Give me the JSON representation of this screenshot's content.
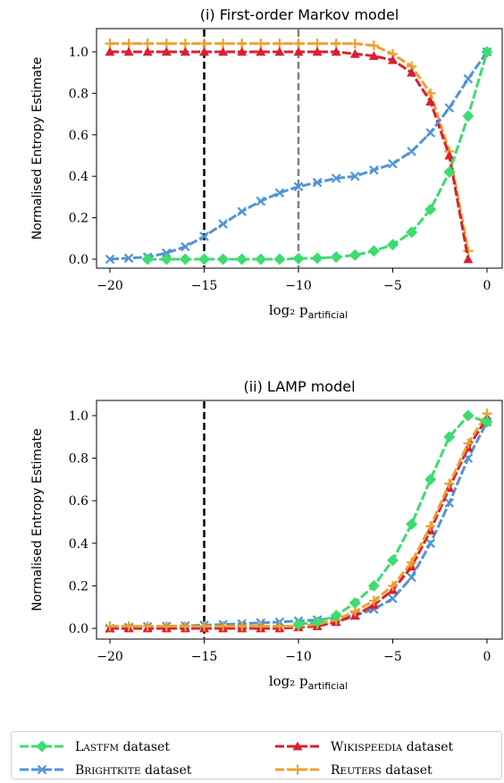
{
  "figure": {
    "legend": {
      "entries": [
        {
          "series": "lastfm",
          "name_caps": "LastFM",
          "suffix": " dataset"
        },
        {
          "series": "wikispeedia",
          "name_caps": "Wikispeedia",
          "suffix": " dataset"
        },
        {
          "series": "brightkite",
          "name_caps": "BrightKite",
          "suffix": " dataset"
        },
        {
          "series": "reuters",
          "name_caps": "Reuters",
          "suffix": " dataset"
        }
      ]
    },
    "colors": {
      "lastfm": "#3ddc6f",
      "brightkite": "#4f94d6",
      "wikispeedia": "#d9202f",
      "reuters": "#ef9f2e",
      "guide_black": "#000000",
      "guide_gray": "#808080"
    },
    "markers": {
      "lastfm": "diamond",
      "brightkite": "x",
      "wikispeedia": "triangle-up",
      "reuters": "plus"
    }
  },
  "chart_data": [
    {
      "type": "line",
      "title": "(i) First-order Markov model",
      "xlabel": "log₂ p",
      "xlabel_subscript": "artificial",
      "ylabel": "Normalised Entropy Estimate",
      "xlim": [
        -20,
        0
      ],
      "ylim": [
        0,
        1
      ],
      "xticks": [
        -20,
        -15,
        -10,
        -5,
        0
      ],
      "xtick_labels": [
        "−20",
        "−15",
        "−10",
        "−5",
        "0"
      ],
      "yticks": [
        0,
        0.2,
        0.4,
        0.6,
        0.8,
        1.0
      ],
      "ytick_labels": [
        "0.0",
        "0.2",
        "0.4",
        "0.6",
        "0.8",
        "1.0"
      ],
      "grid": false,
      "vlines": [
        {
          "x": -15,
          "color": "black",
          "style": "dashed"
        },
        {
          "x": -10,
          "color": "gray",
          "style": "dashed"
        }
      ],
      "x": [
        -20,
        -19,
        -18,
        -17,
        -16,
        -15,
        -14,
        -13,
        -12,
        -11,
        -10,
        -9,
        -8,
        -7,
        -6,
        -5,
        -4,
        -3,
        -2,
        -1,
        0
      ],
      "series": [
        {
          "key": "reuters",
          "values": [
            1.04,
            1.04,
            1.04,
            1.04,
            1.04,
            1.04,
            1.04,
            1.04,
            1.04,
            1.04,
            1.04,
            1.04,
            1.04,
            1.04,
            1.03,
            0.99,
            0.93,
            0.8,
            0.52,
            0.04,
            null
          ]
        },
        {
          "key": "wikispeedia",
          "values": [
            1.0,
            1.0,
            1.0,
            1.0,
            1.0,
            1.0,
            1.0,
            1.0,
            1.0,
            1.0,
            1.0,
            1.0,
            1.0,
            0.99,
            0.98,
            0.96,
            0.9,
            0.76,
            0.5,
            0.0,
            null
          ]
        },
        {
          "key": "brightkite",
          "values": [
            0.0,
            0.005,
            0.01,
            0.03,
            0.06,
            0.11,
            0.17,
            0.23,
            0.28,
            0.32,
            0.35,
            0.37,
            0.39,
            0.4,
            0.43,
            0.46,
            0.52,
            0.61,
            0.73,
            0.87,
            1.0
          ]
        },
        {
          "key": "lastfm",
          "values": [
            null,
            null,
            0.0,
            0.0,
            0.0,
            0.0,
            0.0,
            0.0,
            0.0,
            0.0,
            0.003,
            0.005,
            0.01,
            0.02,
            0.04,
            0.07,
            0.13,
            0.24,
            0.42,
            0.69,
            1.0
          ]
        }
      ]
    },
    {
      "type": "line",
      "title": "(ii) LAMP model",
      "xlabel": "log₂ p",
      "xlabel_subscript": "artificial",
      "ylabel": "Normalised Entropy Estimate",
      "xlim": [
        -20,
        0
      ],
      "ylim": [
        0,
        1
      ],
      "xticks": [
        -20,
        -15,
        -10,
        -5,
        0
      ],
      "xtick_labels": [
        "−20",
        "−15",
        "−10",
        "−5",
        "0"
      ],
      "yticks": [
        0,
        0.2,
        0.4,
        0.6,
        0.8,
        1.0
      ],
      "ytick_labels": [
        "0.0",
        "0.2",
        "0.4",
        "0.6",
        "0.8",
        "1.0"
      ],
      "grid": false,
      "vlines": [
        {
          "x": -15,
          "color": "black",
          "style": "dashed"
        }
      ],
      "x": [
        -20,
        -19,
        -18,
        -17,
        -16,
        -15,
        -14,
        -13,
        -12,
        -11,
        -10,
        -9,
        -8,
        -7,
        -6,
        -5,
        -4,
        -3,
        -2,
        -1,
        0
      ],
      "series": [
        {
          "key": "brightkite",
          "values": [
            0.0,
            0.005,
            0.008,
            0.01,
            0.012,
            0.015,
            0.018,
            0.022,
            0.026,
            0.03,
            0.035,
            0.04,
            0.05,
            0.06,
            0.09,
            0.14,
            0.24,
            0.4,
            0.59,
            0.8,
            0.97
          ]
        },
        {
          "key": "wikispeedia",
          "values": [
            0.0,
            0.0,
            0.0,
            0.0,
            0.0,
            0.0,
            0.0,
            0.0,
            0.0,
            0.0,
            0.005,
            0.01,
            0.03,
            0.06,
            0.11,
            0.18,
            0.29,
            0.46,
            0.66,
            0.85,
            0.99
          ]
        },
        {
          "key": "reuters",
          "values": [
            0.01,
            0.01,
            0.01,
            0.01,
            0.01,
            0.01,
            0.01,
            0.01,
            0.01,
            0.01,
            0.01,
            0.02,
            0.04,
            0.08,
            0.13,
            0.2,
            0.31,
            0.48,
            0.68,
            0.87,
            1.01
          ]
        },
        {
          "key": "lastfm",
          "values": [
            null,
            null,
            null,
            null,
            null,
            null,
            null,
            null,
            null,
            null,
            0.02,
            0.03,
            0.06,
            0.12,
            0.2,
            0.32,
            0.49,
            0.7,
            0.9,
            1.0,
            0.97
          ]
        }
      ]
    }
  ]
}
